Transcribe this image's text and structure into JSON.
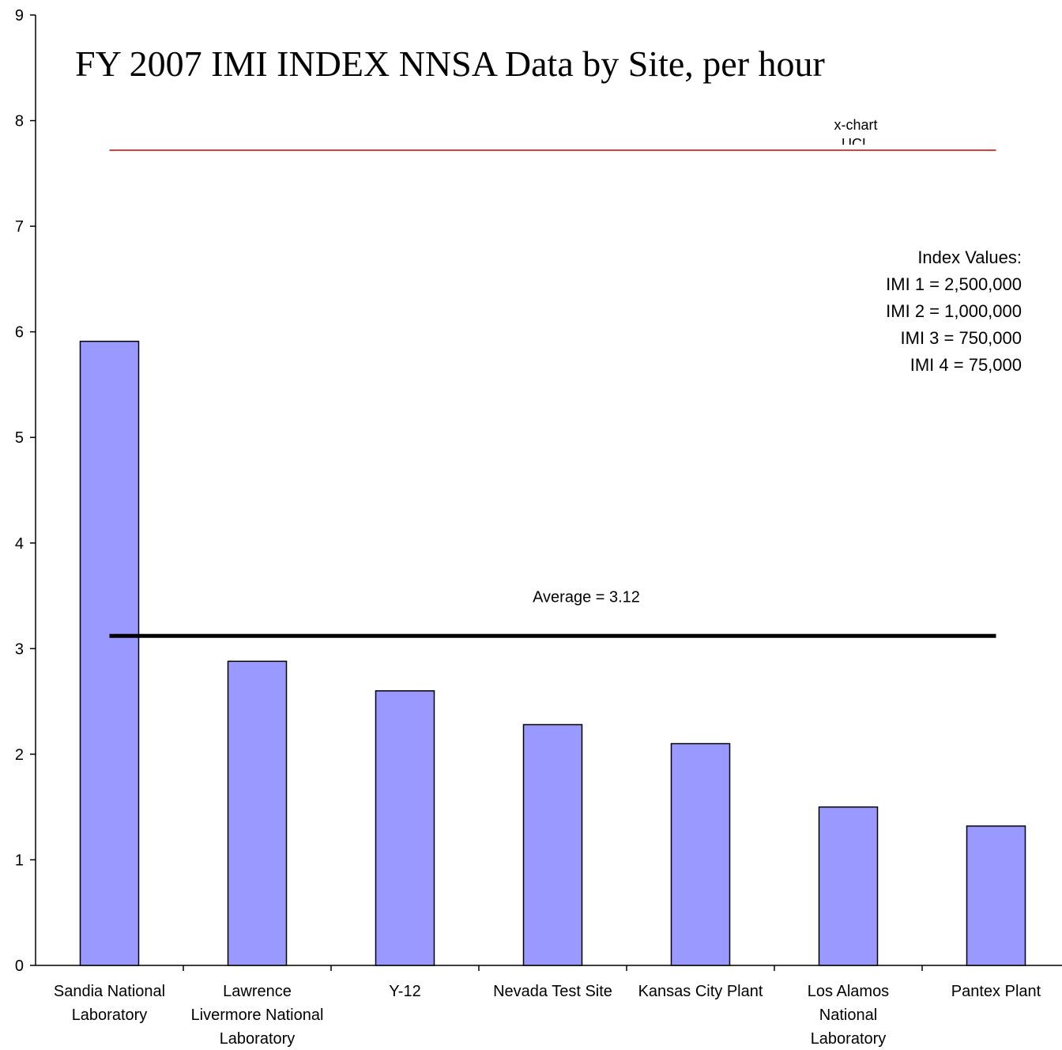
{
  "chart_data": {
    "type": "bar",
    "title": "FY 2007 IMI INDEX NNSA Data by Site, per hour",
    "categories": [
      "Sandia National\nLaboratory",
      "Lawrence\nLivermore National\nLaboratory",
      "Y-12",
      "Nevada Test Site",
      "Kansas City Plant",
      "Los Alamos\nNational\nLaboratory",
      "Pantex Plant"
    ],
    "values": [
      5.91,
      2.88,
      2.6,
      2.28,
      2.1,
      1.5,
      1.32
    ],
    "color": "#9999ff",
    "ylim": [
      0,
      9
    ],
    "yticks": [
      0,
      1,
      2,
      3,
      4,
      5,
      6,
      7,
      8,
      9
    ],
    "reference_lines": [
      {
        "label": "Average = 3.12",
        "value": 3.12,
        "color": "#000000"
      },
      {
        "label": "x-chart\nUCL",
        "value": 7.72,
        "color": "#cc0000"
      }
    ],
    "annotation": [
      "Index Values:",
      "IMI 1 = 2,500,000",
      "IMI 2 = 1,000,000",
      "IMI 3 = 750,000",
      "IMI 4 = 75,000"
    ]
  }
}
